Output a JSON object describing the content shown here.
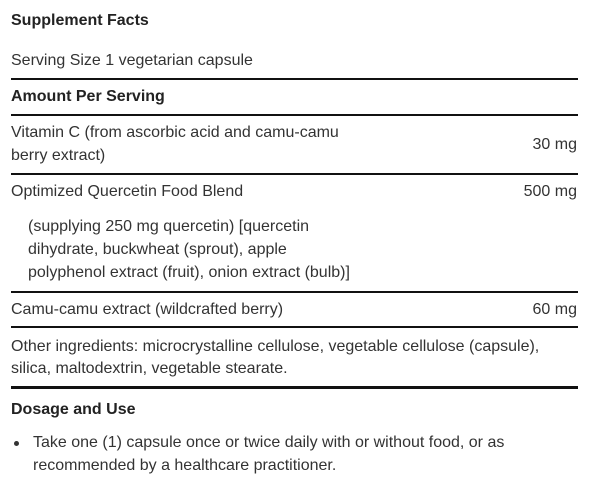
{
  "title": "Supplement Facts",
  "serving_size": "Serving Size 1 vegetarian capsule",
  "amount_header": "Amount Per Serving",
  "rows": [
    {
      "name_lines": [
        "Vitamin C (from ascorbic acid and camu-camu",
        "berry extract)"
      ],
      "amount": "30 mg"
    },
    {
      "name_lines": [
        "Optimized Quercetin Food Blend"
      ],
      "amount": "500 mg",
      "detail_lines": [
        "(supplying 250 mg quercetin) [quercetin",
        "dihydrate, buckwheat (sprout), apple",
        "polyphenol extract (fruit), onion extract (bulb)]"
      ]
    },
    {
      "name_lines": [
        "Camu-camu extract (wildcrafted berry)"
      ],
      "amount": "60 mg"
    }
  ],
  "other_ingredients_lines": [
    "Other ingredients: microcrystalline cellulose, vegetable cellulose (capsule),",
    "silica, maltodextrin, vegetable stearate."
  ],
  "dosage": {
    "heading": "Dosage and Use",
    "bullet_lines": [
      "Take one (1) capsule once or twice daily with or without food, or as",
      "recommended by a healthcare practitioner."
    ]
  }
}
